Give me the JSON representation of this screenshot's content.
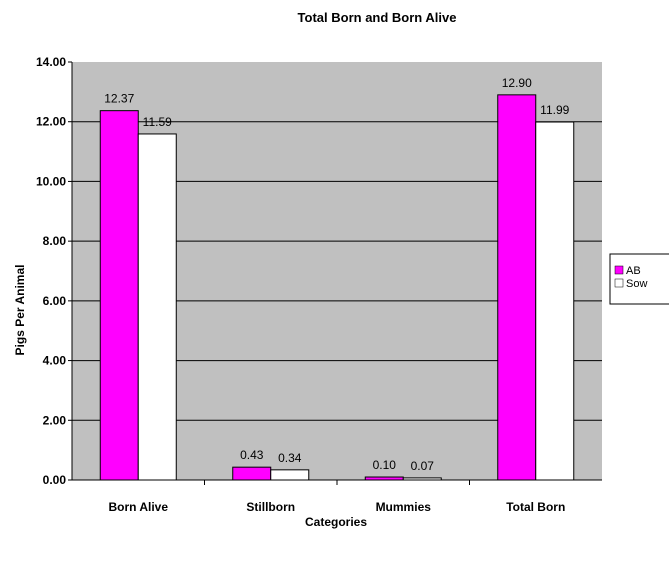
{
  "chart_data": {
    "type": "bar",
    "title": "Total Born and Born Alive",
    "xlabel": "Categories",
    "ylabel": "Pigs Per Animal",
    "categories": [
      "Born Alive",
      "Stillborn",
      "Mummies",
      "Total Born"
    ],
    "series": [
      {
        "name": "AB",
        "values": [
          12.37,
          0.43,
          0.1,
          12.9
        ],
        "color": "#ff00ff"
      },
      {
        "name": "Sow",
        "values": [
          11.59,
          0.34,
          0.07,
          11.99
        ],
        "color": "#ffffff"
      }
    ],
    "value_labels": [
      [
        "12.37",
        "0.43",
        "0.10",
        "12.90"
      ],
      [
        "11.59",
        "0.34",
        "0.07",
        "11.99"
      ]
    ],
    "ylim": [
      0,
      14
    ],
    "yticks": [
      "0.00",
      "2.00",
      "4.00",
      "6.00",
      "8.00",
      "10.00",
      "12.00",
      "14.00"
    ],
    "grid": true,
    "legend": "right",
    "plot_background": "#c0c0c0"
  }
}
